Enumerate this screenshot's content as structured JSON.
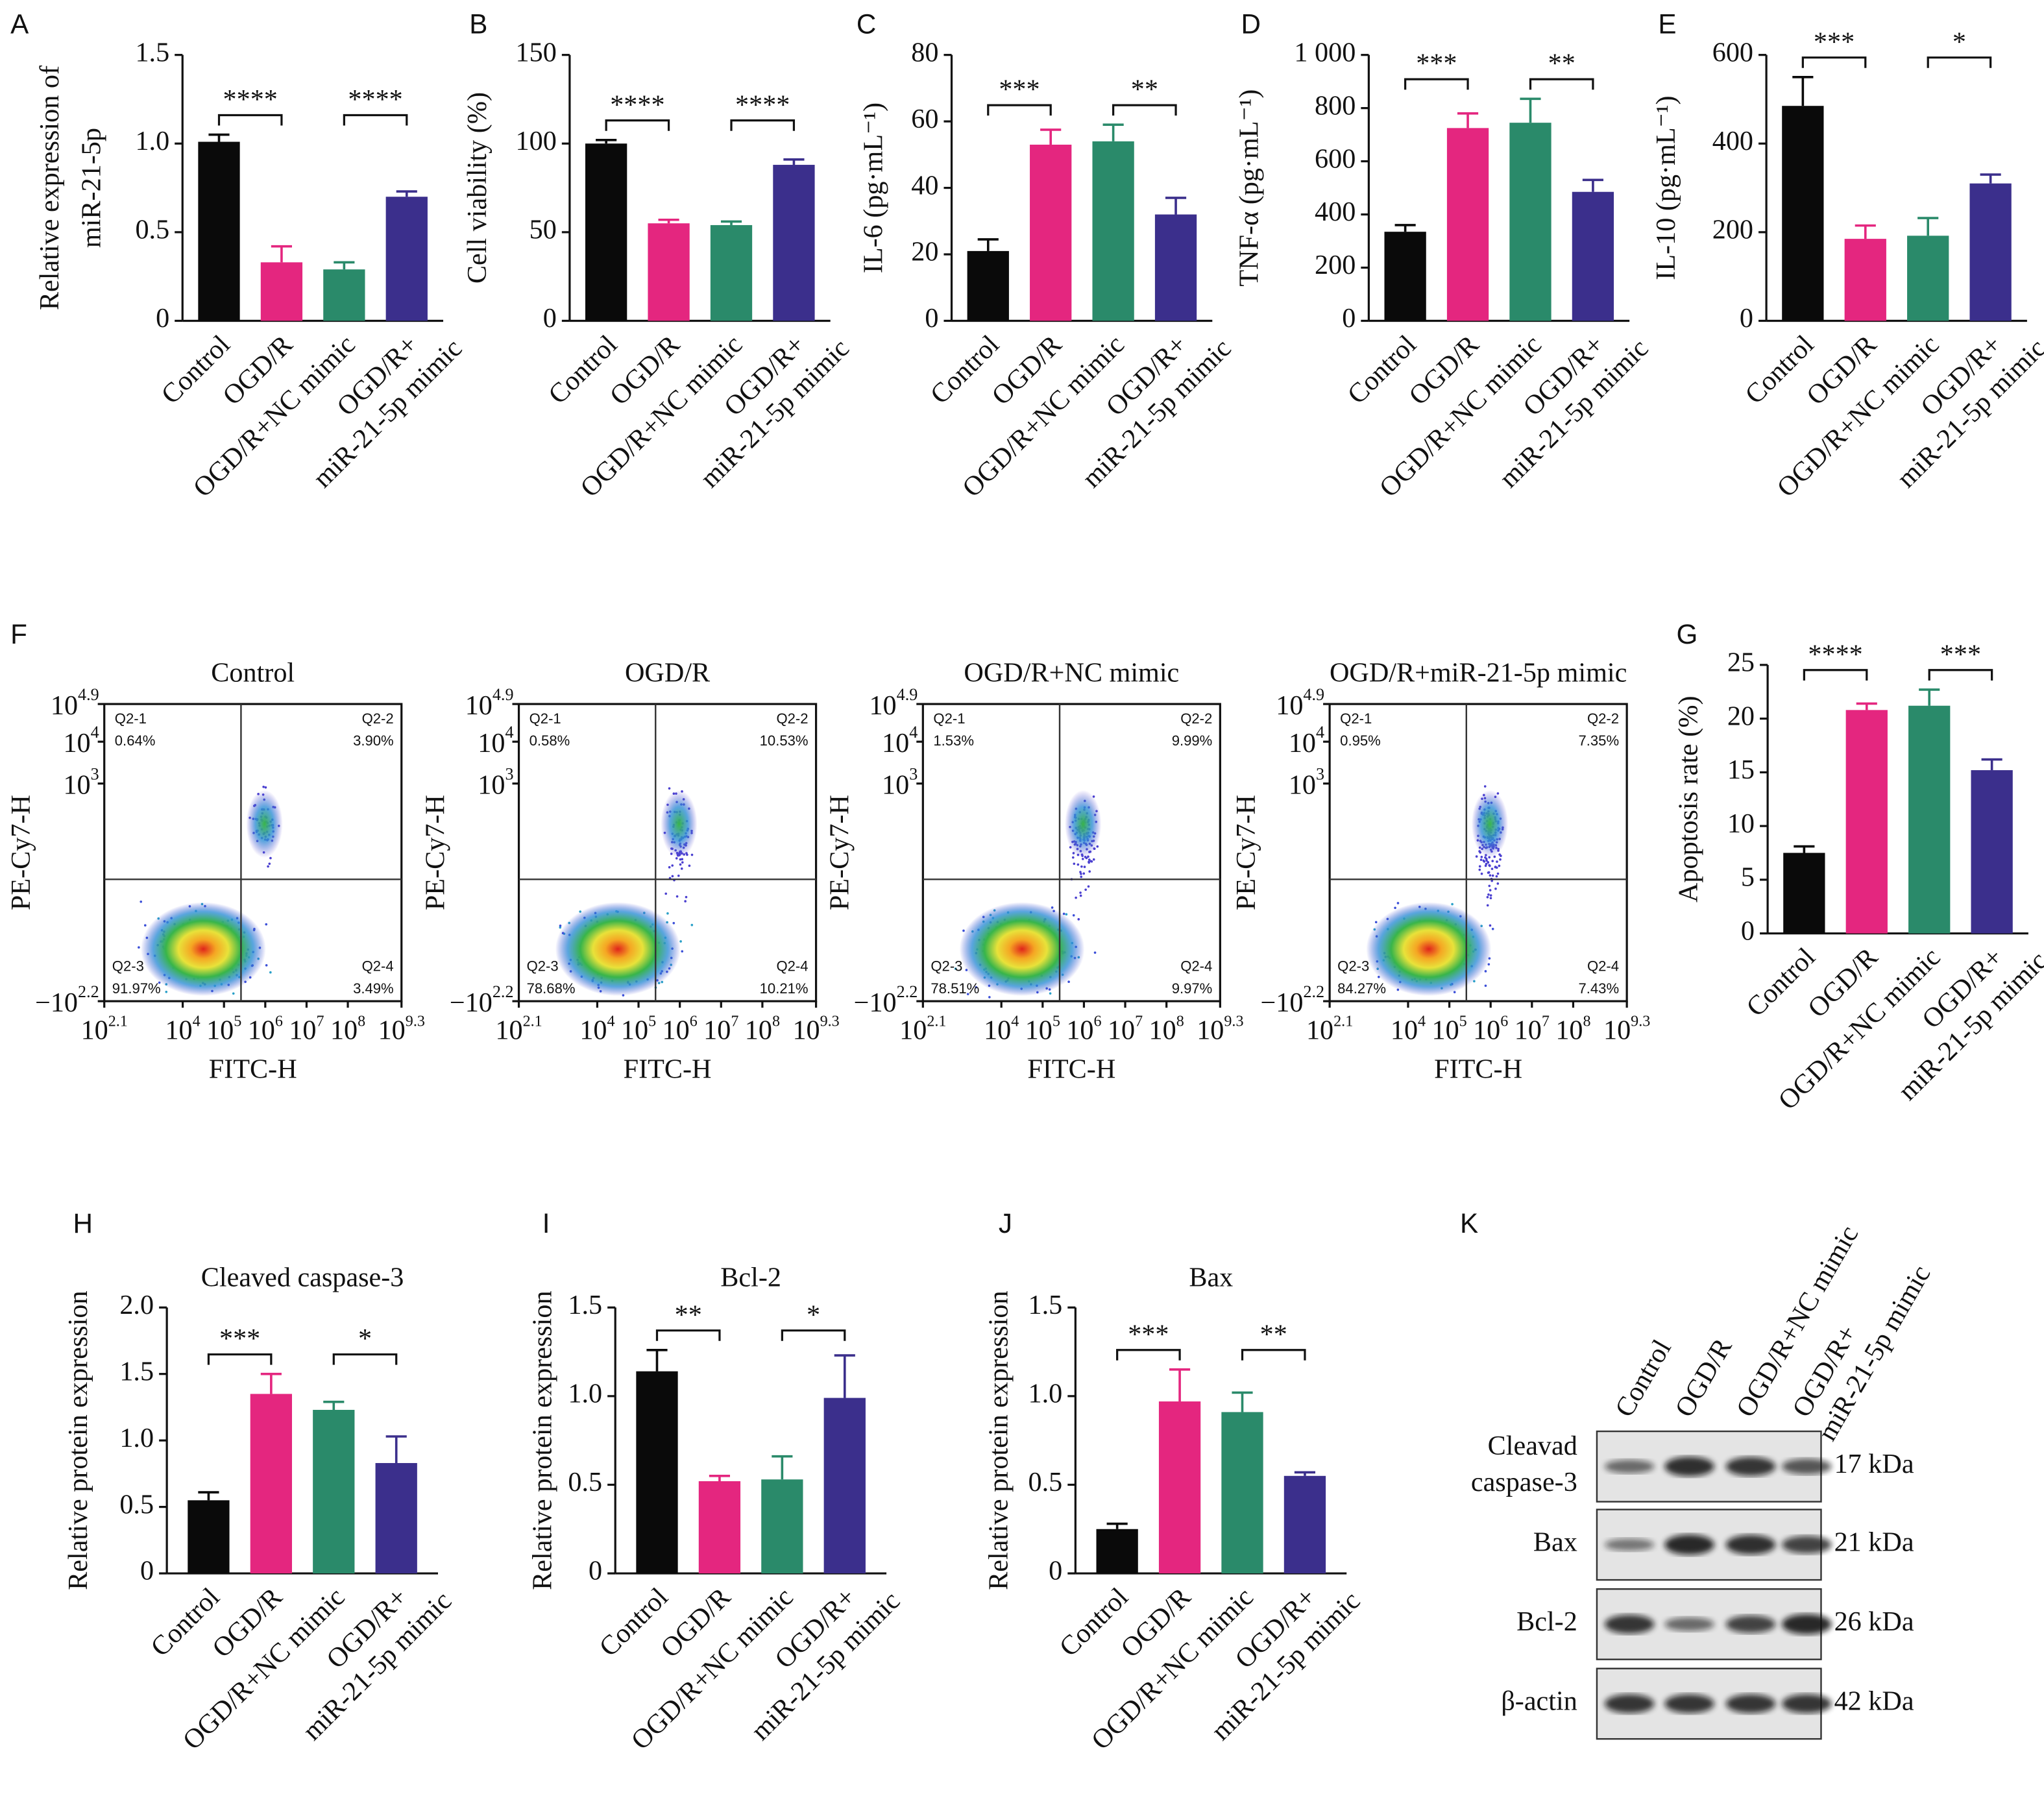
{
  "chart_data": [
    {
      "type": "bar",
      "panel": "A",
      "ylabel": [
        "Relative expression of",
        "miR-21-5p"
      ],
      "categories": [
        "Control",
        "OGD/R",
        "OGD/R+NC mimic",
        [
          "OGD/R+",
          "miR-21-5p mimic"
        ]
      ],
      "values": [
        1.01,
        0.33,
        0.29,
        0.7
      ],
      "errors": [
        0.04,
        0.09,
        0.04,
        0.03
      ],
      "colors": [
        "#0a0a0a",
        "#e4267f",
        "#2a8a6a",
        "#3b2f8c"
      ],
      "ylim": [
        0,
        1.5
      ],
      "yticks": [
        0,
        0.5,
        {
          "value": 1,
          "label": "1.0"
        },
        1.5
      ],
      "significance": [
        {
          "groups": [
            0,
            1
          ],
          "label": "****"
        },
        {
          "groups": [
            2,
            3
          ],
          "label": "****"
        }
      ]
    },
    {
      "type": "bar",
      "panel": "B",
      "ylabel": "Cell viability (%)",
      "categories": [
        "Control",
        "OGD/R",
        "OGD/R+NC mimic",
        [
          "OGD/R+",
          "miR-21-5p mimic"
        ]
      ],
      "values": [
        100,
        55,
        54,
        88
      ],
      "errors": [
        2,
        2,
        2,
        3
      ],
      "colors": [
        "#0a0a0a",
        "#e4267f",
        "#2a8a6a",
        "#3b2f8c"
      ],
      "ylim": [
        0,
        150
      ],
      "yticks": [
        0,
        50,
        100,
        150
      ],
      "significance": [
        {
          "groups": [
            0,
            1
          ],
          "label": "****"
        },
        {
          "groups": [
            2,
            3
          ],
          "label": "****"
        }
      ]
    },
    {
      "type": "bar",
      "panel": "C",
      "ylabel": "IL-6 (pg·mL⁻¹)",
      "categories": [
        "Control",
        "OGD/R",
        "OGD/R+NC mimic",
        [
          "OGD/R+",
          "miR-21-5p mimic"
        ]
      ],
      "values": [
        21,
        53,
        54,
        32
      ],
      "errors": [
        3.5,
        4.5,
        5,
        5
      ],
      "colors": [
        "#0a0a0a",
        "#e4267f",
        "#2a8a6a",
        "#3b2f8c"
      ],
      "ylim": [
        0,
        80
      ],
      "yticks": [
        0,
        20,
        40,
        60,
        80
      ],
      "significance": [
        {
          "groups": [
            0,
            1
          ],
          "label": "***"
        },
        {
          "groups": [
            2,
            3
          ],
          "label": "**"
        }
      ]
    },
    {
      "type": "bar",
      "panel": "D",
      "ylabel": "TNF-α (pg·mL⁻¹)",
      "categories": [
        "Control",
        "OGD/R",
        "OGD/R+NC mimic",
        [
          "OGD/R+",
          "miR-21-5p mimic"
        ]
      ],
      "values": [
        335,
        725,
        745,
        485
      ],
      "errors": [
        25,
        55,
        90,
        45
      ],
      "colors": [
        "#0a0a0a",
        "#e4267f",
        "#2a8a6a",
        "#3b2f8c"
      ],
      "ylim": [
        0,
        1000
      ],
      "yticks": [
        0,
        200,
        400,
        600,
        800,
        {
          "value": 1000,
          "label": "1 000"
        }
      ],
      "significance": [
        {
          "groups": [
            0,
            1
          ],
          "label": "***"
        },
        {
          "groups": [
            2,
            3
          ],
          "label": "**"
        }
      ]
    },
    {
      "type": "bar",
      "panel": "E",
      "ylabel": "IL-10 (pg·mL⁻¹)",
      "categories": [
        "Control",
        "OGD/R",
        "OGD/R+NC mimic",
        [
          "OGD/R+",
          "miR-21-5p mimic"
        ]
      ],
      "values": [
        485,
        185,
        192,
        310
      ],
      "errors": [
        65,
        30,
        40,
        20
      ],
      "colors": [
        "#0a0a0a",
        "#e4267f",
        "#2a8a6a",
        "#3b2f8c"
      ],
      "ylim": [
        0,
        600
      ],
      "yticks": [
        0,
        200,
        400,
        600
      ],
      "significance": [
        {
          "groups": [
            0,
            1
          ],
          "label": "***"
        },
        {
          "groups": [
            2,
            3
          ],
          "label": "*"
        }
      ]
    },
    {
      "type": "flow",
      "panel": "F",
      "xlabel": "FITC-H",
      "ylabel": "PE-Cy7-H",
      "xlim": [
        2.1,
        9.3
      ],
      "ylim": [
        -2.2,
        4.9
      ],
      "xticks": [
        {
          "value": 2.1,
          "label": "10",
          "sup": "2.1"
        },
        {
          "value": 4,
          "label": "10",
          "sup": "4"
        },
        {
          "value": 5,
          "label": "10",
          "sup": "5"
        },
        {
          "value": 6,
          "label": "10",
          "sup": "6"
        },
        {
          "value": 7,
          "label": "10",
          "sup": "7"
        },
        {
          "value": 8,
          "label": "10",
          "sup": "8"
        },
        {
          "value": 9.3,
          "label": "10",
          "sup": "9.3"
        }
      ],
      "yticks": [
        {
          "value": -2.2,
          "label": "−10",
          "sup": "2.2"
        },
        {
          "value": 3,
          "label": "10",
          "sup": "3"
        },
        {
          "value": 4,
          "label": "10",
          "sup": "4"
        },
        {
          "value": 4.9,
          "label": "10",
          "sup": "4.9"
        }
      ],
      "quadrants": [
        "Q2-1",
        "Q2-2",
        "Q2-3",
        "Q2-4"
      ],
      "plots": [
        {
          "title": "Control",
          "values": [
            0.64,
            3.9,
            91.97,
            3.49
          ],
          "value_labels": [
            "0.64%",
            "3.90%",
            "91.97%",
            "3.49%"
          ]
        },
        {
          "title": "OGD/R",
          "values": [
            0.58,
            10.53,
            78.68,
            10.21
          ],
          "value_labels": [
            "0.58%",
            "10.53%",
            "78.68%",
            "10.21%"
          ]
        },
        {
          "title": "OGD/R+NC mimic",
          "values": [
            1.53,
            9.99,
            78.51,
            9.97
          ],
          "value_labels": [
            "1.53%",
            "9.99%",
            "78.51%",
            "9.97%"
          ]
        },
        {
          "title": "OGD/R+miR-21-5p mimic",
          "values": [
            0.95,
            7.35,
            84.27,
            7.43
          ],
          "value_labels": [
            "0.95%",
            "7.35%",
            "84.27%",
            "7.43%"
          ]
        }
      ]
    },
    {
      "type": "bar",
      "panel": "G",
      "ylabel": "Apoptosis rate (%)",
      "categories": [
        "Control",
        "OGD/R",
        "OGD/R+NC mimic",
        [
          "OGD/R+",
          "miR-21-5p mimic"
        ]
      ],
      "values": [
        7.5,
        20.8,
        21.2,
        15.2
      ],
      "errors": [
        0.6,
        0.6,
        1.5,
        1.0
      ],
      "colors": [
        "#0a0a0a",
        "#e4267f",
        "#2a8a6a",
        "#3b2f8c"
      ],
      "ylim": [
        0,
        25
      ],
      "yticks": [
        0,
        5,
        10,
        15,
        20,
        25
      ],
      "significance": [
        {
          "groups": [
            0,
            1
          ],
          "label": "****"
        },
        {
          "groups": [
            2,
            3
          ],
          "label": "***"
        }
      ]
    },
    {
      "type": "bar",
      "panel": "H",
      "title": "Cleaved caspase-3",
      "ylabel": "Relative protein expression",
      "categories": [
        "Control",
        "OGD/R",
        "OGD/R+NC mimic",
        [
          "OGD/R+",
          "miR-21-5p mimic"
        ]
      ],
      "values": [
        0.55,
        1.35,
        1.23,
        0.83
      ],
      "errors": [
        0.06,
        0.15,
        0.06,
        0.2
      ],
      "colors": [
        "#0a0a0a",
        "#e4267f",
        "#2a8a6a",
        "#3b2f8c"
      ],
      "ylim": [
        0,
        2
      ],
      "yticks": [
        0,
        0.5,
        {
          "value": 1,
          "label": "1.0"
        },
        1.5,
        {
          "value": 2,
          "label": "2.0"
        }
      ],
      "significance": [
        {
          "groups": [
            0,
            1
          ],
          "label": "***"
        },
        {
          "groups": [
            2,
            3
          ],
          "label": "*"
        }
      ]
    },
    {
      "type": "bar",
      "panel": "I",
      "title": "Bcl-2",
      "ylabel": "Relative protein expression",
      "categories": [
        "Control",
        "OGD/R",
        "OGD/R+NC mimic",
        [
          "OGD/R+",
          "miR-21-5p mimic"
        ]
      ],
      "values": [
        1.14,
        0.52,
        0.53,
        0.99
      ],
      "errors": [
        0.12,
        0.03,
        0.13,
        0.24
      ],
      "colors": [
        "#0a0a0a",
        "#e4267f",
        "#2a8a6a",
        "#3b2f8c"
      ],
      "ylim": [
        0,
        1.5
      ],
      "yticks": [
        0,
        0.5,
        {
          "value": 1,
          "label": "1.0"
        },
        1.5
      ],
      "significance": [
        {
          "groups": [
            0,
            1
          ],
          "label": "**"
        },
        {
          "groups": [
            2,
            3
          ],
          "label": "*"
        }
      ]
    },
    {
      "type": "bar",
      "panel": "J",
      "title": "Bax",
      "ylabel": "Relative protein expression",
      "categories": [
        "Control",
        "OGD/R",
        "OGD/R+NC mimic",
        [
          "OGD/R+",
          "miR-21-5p mimic"
        ]
      ],
      "values": [
        0.25,
        0.97,
        0.91,
        0.55
      ],
      "errors": [
        0.03,
        0.18,
        0.11,
        0.02
      ],
      "colors": [
        "#0a0a0a",
        "#e4267f",
        "#2a8a6a",
        "#3b2f8c"
      ],
      "ylim": [
        0,
        1.5
      ],
      "yticks": [
        0,
        0.5,
        {
          "value": 1,
          "label": "1.0"
        },
        1.5
      ],
      "significance": [
        {
          "groups": [
            0,
            1
          ],
          "label": "***"
        },
        {
          "groups": [
            2,
            3
          ],
          "label": "**"
        }
      ]
    },
    {
      "type": "blot",
      "panel": "K",
      "lanes": [
        "Control",
        "OGD/R",
        "OGD/R+NC mimic",
        [
          "OGD/R+",
          "miR-21-5p mimic"
        ]
      ],
      "rows": [
        [
          "Cleavad",
          "caspase-3"
        ],
        "Bax",
        "Bcl-2",
        "β-actin"
      ],
      "sizes": [
        "17 kDa",
        "21 kDa",
        "26 kDa",
        "42 kDa"
      ]
    }
  ]
}
